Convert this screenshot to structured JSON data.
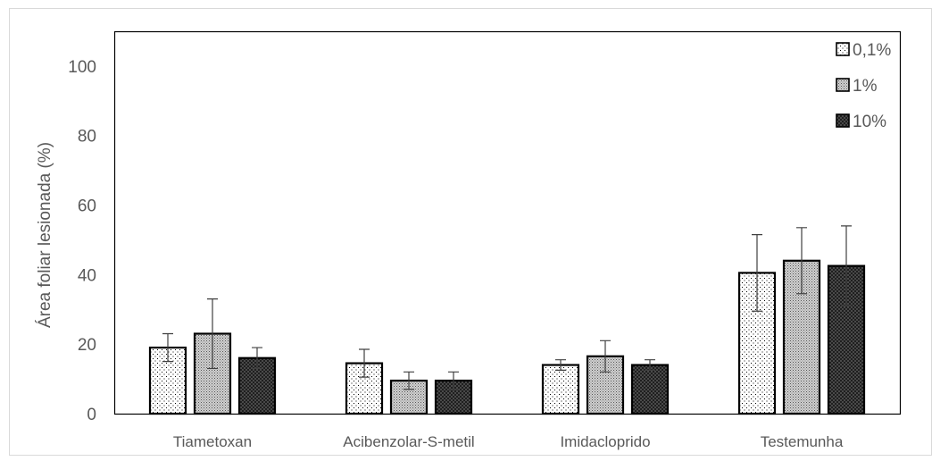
{
  "chart_data": {
    "type": "bar",
    "title": "",
    "xlabel": "",
    "ylabel": "Área foliar lesionada (%)",
    "ylim": [
      0,
      110
    ],
    "yticks": [
      0,
      20,
      40,
      60,
      80,
      100
    ],
    "grid": false,
    "legend_position": "top-right",
    "categories": [
      "Tiametoxan",
      "Acibenzolar-S-metil",
      "Imidacloprido",
      "Testemunha"
    ],
    "series": [
      {
        "name": "0,1%",
        "pattern": "dots-sparse",
        "values": [
          19.0,
          14.5,
          14.0,
          40.5
        ],
        "errors": [
          4.0,
          4.0,
          1.5,
          11.0
        ]
      },
      {
        "name": "1%",
        "pattern": "dots-dense",
        "values": [
          23.0,
          9.5,
          16.5,
          44.0
        ],
        "errors": [
          10.0,
          2.5,
          4.5,
          9.5
        ]
      },
      {
        "name": "10%",
        "pattern": "crosshatch",
        "values": [
          16.0,
          9.5,
          14.0,
          42.5
        ],
        "errors": [
          3.0,
          2.5,
          1.5,
          11.5
        ]
      }
    ],
    "colors": {
      "bar_edge": "#000000",
      "text": "#595959",
      "axis": "#000000",
      "error_bar": "#404040"
    }
  }
}
